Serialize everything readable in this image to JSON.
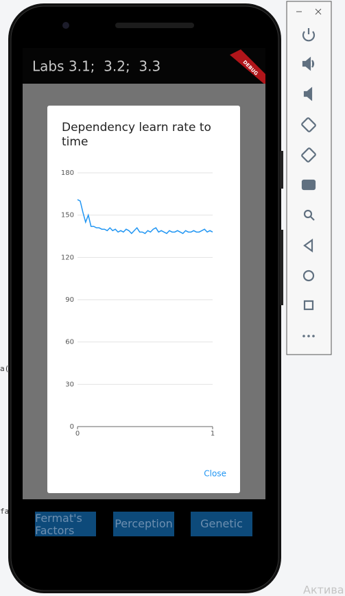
{
  "app": {
    "title": "Labs 3.1;  3.2;  3.3",
    "debug_banner": "DEBUG",
    "buttons": [
      "Fermat's Factors",
      "Perception",
      "Genetic"
    ]
  },
  "dialog": {
    "close": "Close"
  },
  "background": {
    "editor_fragments": [
      "a(",
      "fa"
    ],
    "watermark": "Актива"
  },
  "chart_data": {
    "type": "line",
    "title": "Dependency learn rate to time",
    "x": [
      0,
      0.02,
      0.04,
      0.06,
      0.08,
      0.1,
      0.12,
      0.14,
      0.16,
      0.18,
      0.2,
      0.22,
      0.24,
      0.26,
      0.28,
      0.3,
      0.32,
      0.34,
      0.36,
      0.38,
      0.4,
      0.42,
      0.44,
      0.46,
      0.48,
      0.5,
      0.52,
      0.54,
      0.56,
      0.58,
      0.6,
      0.62,
      0.64,
      0.66,
      0.68,
      0.7,
      0.72,
      0.74,
      0.76,
      0.78,
      0.8,
      0.82,
      0.84,
      0.86,
      0.88,
      0.9,
      0.92,
      0.94,
      0.96,
      0.98,
      1
    ],
    "series": [
      {
        "color": "#2196f3",
        "values": [
          161,
          160,
          152,
          145,
          150,
          142,
          142,
          141,
          141,
          140,
          140,
          139,
          141,
          139,
          140,
          138,
          139,
          138,
          140,
          139,
          137,
          139,
          141,
          138,
          138,
          137,
          139,
          138,
          140,
          141,
          138,
          139,
          138,
          137,
          139,
          138,
          138,
          139,
          138,
          137,
          139,
          138,
          138,
          139,
          138,
          138,
          139,
          140,
          138,
          139,
          138
        ]
      }
    ],
    "xlim": [
      0,
      1
    ],
    "xticks": [
      0,
      1
    ],
    "ylim": [
      0,
      180
    ],
    "yticks": [
      0,
      30,
      60,
      90,
      120,
      150,
      180
    ],
    "grid": true
  }
}
